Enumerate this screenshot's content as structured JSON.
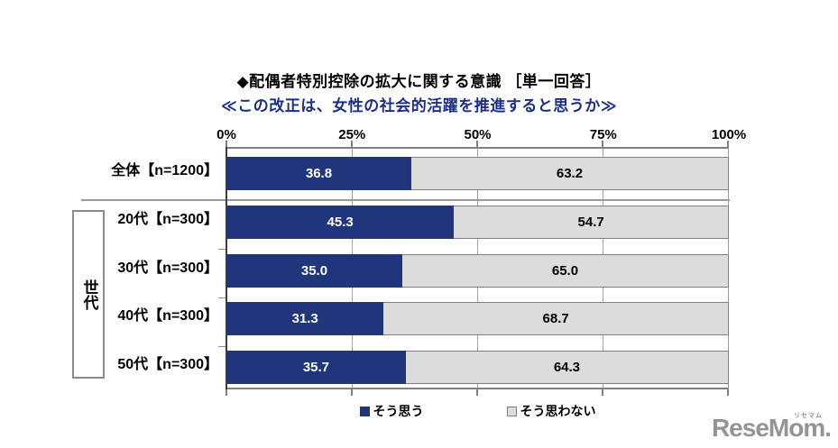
{
  "title": "◆配偶者特別控除の拡大に関する意識 ［単一回答］",
  "subtitle": "≪この改正は、女性の社会的活躍を推進すると思うか≫",
  "group_label": "世代",
  "colors": {
    "agree": "#21357c",
    "disagree": "#dcdcdc",
    "subtitle": "#1b2f85",
    "logo": "#949494"
  },
  "chart_data": {
    "type": "bar",
    "orientation": "horizontal",
    "stacked": true,
    "xlim": [
      0,
      100
    ],
    "x_tick_labels": [
      "0%",
      "25%",
      "50%",
      "75%",
      "100%"
    ],
    "grid": "vertical-25pct",
    "legend_position": "bottom",
    "categories": [
      "全体【n=1200】",
      "20代【n=300】",
      "30代【n=300】",
      "40代【n=300】",
      "50代【n=300】"
    ],
    "series": [
      {
        "name": "そう思う",
        "color": "#21357c",
        "values": [
          36.8,
          45.3,
          35.0,
          31.3,
          35.7
        ]
      },
      {
        "name": "そう思わない",
        "color": "#dcdcdc",
        "values": [
          63.2,
          54.7,
          65.0,
          68.7,
          64.3
        ]
      }
    ],
    "rows": [
      {
        "label": "全体【n=1200】",
        "agree": 36.8,
        "agree_label": "36.8",
        "disagree": 63.2,
        "disagree_label": "63.2"
      },
      {
        "label": "20代【n=300】",
        "agree": 45.3,
        "agree_label": "45.3",
        "disagree": 54.7,
        "disagree_label": "54.7"
      },
      {
        "label": "30代【n=300】",
        "agree": 35.0,
        "agree_label": "35.0",
        "disagree": 65.0,
        "disagree_label": "65.0"
      },
      {
        "label": "40代【n=300】",
        "agree": 31.3,
        "agree_label": "31.3",
        "disagree": 68.7,
        "disagree_label": "68.7"
      },
      {
        "label": "50代【n=300】",
        "agree": 35.7,
        "agree_label": "35.7",
        "disagree": 64.3,
        "disagree_label": "64.3"
      }
    ],
    "legend": [
      {
        "label": "そう思う",
        "color": "#21357c"
      },
      {
        "label": "そう思わない",
        "color": "#dcdcdc"
      }
    ]
  },
  "logo": {
    "text": "ReseMom.",
    "ruby": "リセマム"
  }
}
